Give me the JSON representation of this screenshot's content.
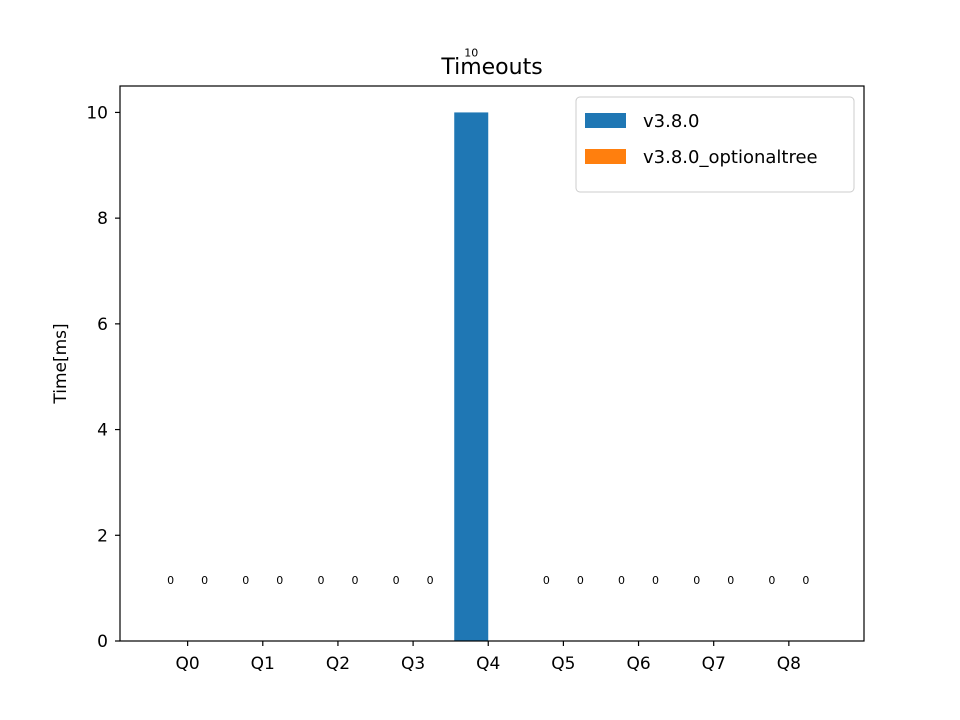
{
  "chart_data": {
    "type": "bar",
    "title": "Timeouts",
    "xlabel": "",
    "ylabel": "Time[ms]",
    "categories": [
      "Q0",
      "Q1",
      "Q2",
      "Q3",
      "Q4",
      "Q5",
      "Q6",
      "Q7",
      "Q8"
    ],
    "series": [
      {
        "name": "v3.8.0",
        "color": "#1f77b4",
        "values": [
          0,
          0,
          0,
          0,
          10,
          0,
          0,
          0,
          0
        ],
        "labels": [
          "0",
          "0",
          "0",
          "0",
          "10",
          "0",
          "0",
          "0",
          "0"
        ]
      },
      {
        "name": "v3.8.0_optionaltree",
        "color": "#ff7f0e",
        "values": [
          0,
          0,
          0,
          0,
          0,
          0,
          0,
          0,
          0
        ],
        "labels": [
          "0",
          "0",
          "0",
          "0",
          "",
          "0",
          "0",
          "0",
          "0"
        ]
      }
    ],
    "ylim": [
      0,
      10.5
    ],
    "yticks": [
      0,
      2,
      4,
      6,
      8,
      10
    ],
    "grid": false,
    "legend": "upper right"
  }
}
